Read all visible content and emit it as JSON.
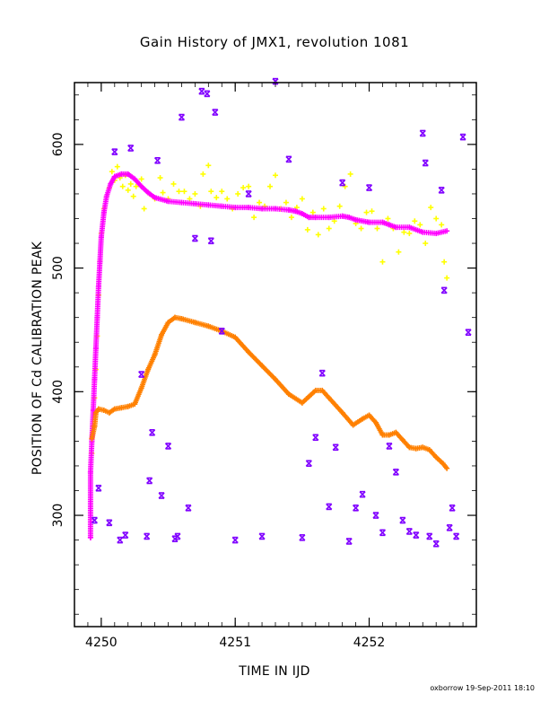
{
  "title": "Gain History of JMX1, revolution 1081",
  "footer": "oxborrow 19-Sep-2011 18:10",
  "colors": {
    "background": "#ffffff",
    "frame": "#000000",
    "yellow": "#ffff00",
    "magenta": "#ff00ff",
    "orange": "#ff8000",
    "purple": "#8000ff"
  },
  "chart_data": {
    "type": "scatter",
    "title": "Gain History of JMX1, revolution 1081",
    "xlabel": "TIME IN IJD",
    "ylabel": "POSITION OF Cd CALIBRATION PEAK",
    "xlim": [
      4249.8,
      4252.8
    ],
    "ylim": [
      210,
      650
    ],
    "xticks": [
      4250,
      4251,
      4252
    ],
    "yticks": [
      300,
      400,
      500,
      600
    ],
    "grid": false,
    "series": [
      {
        "color": "yellow",
        "marker": "cross",
        "points": [
          [
            4249.93,
            350
          ],
          [
            4249.94,
            372
          ],
          [
            4249.95,
            395
          ],
          [
            4249.96,
            418
          ],
          [
            4249.97,
            445
          ],
          [
            4249.98,
            478
          ],
          [
            4249.99,
            505
          ],
          [
            4250.0,
            528
          ],
          [
            4250.02,
            548
          ],
          [
            4250.04,
            558
          ],
          [
            4250.06,
            565
          ],
          [
            4250.08,
            578
          ],
          [
            4250.1,
            571
          ],
          [
            4250.12,
            582
          ],
          [
            4250.14,
            573
          ],
          [
            4250.16,
            566
          ],
          [
            4250.18,
            575
          ],
          [
            4250.2,
            563
          ],
          [
            4250.22,
            568
          ],
          [
            4250.24,
            558
          ],
          [
            4250.26,
            566
          ],
          [
            4250.3,
            572
          ],
          [
            4250.32,
            548
          ],
          [
            4250.36,
            560
          ],
          [
            4250.4,
            556
          ],
          [
            4250.44,
            573
          ],
          [
            4250.46,
            561
          ],
          [
            4250.5,
            556
          ],
          [
            4250.54,
            568
          ],
          [
            4250.58,
            562
          ],
          [
            4250.62,
            562
          ],
          [
            4250.66,
            556
          ],
          [
            4250.7,
            560
          ],
          [
            4250.74,
            550
          ],
          [
            4250.76,
            576
          ],
          [
            4250.8,
            583
          ],
          [
            4250.82,
            562
          ],
          [
            4250.86,
            557
          ],
          [
            4250.9,
            562
          ],
          [
            4250.94,
            556
          ],
          [
            4250.98,
            548
          ],
          [
            4251.02,
            560
          ],
          [
            4251.06,
            565
          ],
          [
            4251.1,
            566
          ],
          [
            4251.14,
            541
          ],
          [
            4251.18,
            553
          ],
          [
            4251.22,
            550
          ],
          [
            4251.26,
            566
          ],
          [
            4251.3,
            575
          ],
          [
            4251.34,
            548
          ],
          [
            4251.38,
            553
          ],
          [
            4251.42,
            541
          ],
          [
            4251.46,
            549
          ],
          [
            4251.5,
            556
          ],
          [
            4251.54,
            531
          ],
          [
            4251.58,
            545
          ],
          [
            4251.62,
            527
          ],
          [
            4251.66,
            548
          ],
          [
            4251.7,
            532
          ],
          [
            4251.74,
            538
          ],
          [
            4251.78,
            550
          ],
          [
            4251.82,
            566
          ],
          [
            4251.86,
            576
          ],
          [
            4251.9,
            536
          ],
          [
            4251.94,
            532
          ],
          [
            4251.98,
            545
          ],
          [
            4252.02,
            546
          ],
          [
            4252.06,
            532
          ],
          [
            4252.1,
            505
          ],
          [
            4252.14,
            540
          ],
          [
            4252.18,
            532
          ],
          [
            4252.22,
            513
          ],
          [
            4252.26,
            529
          ],
          [
            4252.3,
            528
          ],
          [
            4252.34,
            538
          ],
          [
            4252.38,
            535
          ],
          [
            4252.42,
            520
          ],
          [
            4252.46,
            549
          ],
          [
            4252.5,
            540
          ],
          [
            4252.54,
            535
          ],
          [
            4252.56,
            505
          ],
          [
            4252.58,
            492
          ]
        ]
      },
      {
        "color": "magenta",
        "marker": "plus",
        "points": [
          [
            4249.92,
            282
          ],
          [
            4249.92,
            335
          ],
          [
            4249.93,
            360
          ],
          [
            4249.94,
            385
          ],
          [
            4249.95,
            410
          ],
          [
            4249.96,
            435
          ],
          [
            4249.97,
            460
          ],
          [
            4249.98,
            485
          ],
          [
            4249.99,
            505
          ],
          [
            4250.0,
            525
          ],
          [
            4250.02,
            545
          ],
          [
            4250.04,
            558
          ],
          [
            4250.07,
            568
          ],
          [
            4250.1,
            574
          ],
          [
            4250.15,
            576
          ],
          [
            4250.2,
            576
          ],
          [
            4250.25,
            572
          ],
          [
            4250.3,
            566
          ],
          [
            4250.35,
            561
          ],
          [
            4250.4,
            557
          ],
          [
            4250.5,
            554
          ],
          [
            4250.6,
            553
          ],
          [
            4250.7,
            552
          ],
          [
            4250.8,
            551
          ],
          [
            4250.9,
            550
          ],
          [
            4251.0,
            549
          ],
          [
            4251.1,
            549
          ],
          [
            4251.2,
            548
          ],
          [
            4251.3,
            548
          ],
          [
            4251.4,
            547
          ],
          [
            4251.45,
            546
          ],
          [
            4251.5,
            544
          ],
          [
            4251.55,
            541
          ],
          [
            4251.6,
            541
          ],
          [
            4251.7,
            541
          ],
          [
            4251.8,
            542
          ],
          [
            4251.85,
            541
          ],
          [
            4251.9,
            539
          ],
          [
            4252.0,
            537
          ],
          [
            4252.1,
            537
          ],
          [
            4252.15,
            535
          ],
          [
            4252.2,
            533
          ],
          [
            4252.3,
            533
          ],
          [
            4252.4,
            529
          ],
          [
            4252.5,
            528
          ],
          [
            4252.58,
            530
          ]
        ]
      },
      {
        "color": "orange",
        "marker": "plus",
        "points": [
          [
            4249.93,
            362
          ],
          [
            4249.95,
            372
          ],
          [
            4249.96,
            383
          ],
          [
            4249.98,
            386
          ],
          [
            4250.02,
            385
          ],
          [
            4250.06,
            383
          ],
          [
            4250.1,
            386
          ],
          [
            4250.15,
            387
          ],
          [
            4250.2,
            388
          ],
          [
            4250.25,
            390
          ],
          [
            4250.3,
            403
          ],
          [
            4250.35,
            418
          ],
          [
            4250.4,
            430
          ],
          [
            4250.45,
            446
          ],
          [
            4250.5,
            456
          ],
          [
            4250.55,
            460
          ],
          [
            4250.6,
            459
          ],
          [
            4250.7,
            456
          ],
          [
            4250.8,
            453
          ],
          [
            4250.9,
            449
          ],
          [
            4251.0,
            444
          ],
          [
            4251.1,
            432
          ],
          [
            4251.2,
            421
          ],
          [
            4251.3,
            410
          ],
          [
            4251.4,
            398
          ],
          [
            4251.5,
            391
          ],
          [
            4251.55,
            396
          ],
          [
            4251.6,
            401
          ],
          [
            4251.65,
            401
          ],
          [
            4251.7,
            395
          ],
          [
            4251.8,
            383
          ],
          [
            4251.88,
            373
          ],
          [
            4251.95,
            378
          ],
          [
            4252.0,
            381
          ],
          [
            4252.05,
            375
          ],
          [
            4252.1,
            365
          ],
          [
            4252.15,
            365
          ],
          [
            4252.2,
            367
          ],
          [
            4252.25,
            361
          ],
          [
            4252.3,
            355
          ],
          [
            4252.35,
            354
          ],
          [
            4252.4,
            355
          ],
          [
            4252.45,
            353
          ],
          [
            4252.5,
            347
          ],
          [
            4252.55,
            342
          ],
          [
            4252.58,
            338
          ]
        ]
      },
      {
        "color": "purple",
        "marker": "x",
        "points": [
          [
            4249.95,
            296
          ],
          [
            4249.98,
            322
          ],
          [
            4250.06,
            294
          ],
          [
            4250.1,
            594
          ],
          [
            4250.14,
            280
          ],
          [
            4250.18,
            284
          ],
          [
            4250.22,
            597
          ],
          [
            4250.3,
            414
          ],
          [
            4250.34,
            283
          ],
          [
            4250.36,
            328
          ],
          [
            4250.38,
            367
          ],
          [
            4250.42,
            587
          ],
          [
            4250.45,
            316
          ],
          [
            4250.5,
            356
          ],
          [
            4250.55,
            281
          ],
          [
            4250.57,
            283
          ],
          [
            4250.6,
            622
          ],
          [
            4250.65,
            306
          ],
          [
            4250.7,
            524
          ],
          [
            4250.75,
            643
          ],
          [
            4250.79,
            641
          ],
          [
            4250.82,
            522
          ],
          [
            4250.85,
            626
          ],
          [
            4250.9,
            449
          ],
          [
            4251.0,
            280
          ],
          [
            4251.1,
            560
          ],
          [
            4251.2,
            283
          ],
          [
            4251.3,
            651
          ],
          [
            4251.4,
            588
          ],
          [
            4251.5,
            282
          ],
          [
            4251.55,
            342
          ],
          [
            4251.6,
            363
          ],
          [
            4251.65,
            415
          ],
          [
            4251.7,
            307
          ],
          [
            4251.75,
            355
          ],
          [
            4251.8,
            569
          ],
          [
            4251.85,
            279
          ],
          [
            4251.9,
            306
          ],
          [
            4251.95,
            317
          ],
          [
            4252.0,
            565
          ],
          [
            4252.05,
            300
          ],
          [
            4252.1,
            286
          ],
          [
            4252.15,
            356
          ],
          [
            4252.2,
            335
          ],
          [
            4252.25,
            296
          ],
          [
            4252.3,
            287
          ],
          [
            4252.35,
            284
          ],
          [
            4252.4,
            609
          ],
          [
            4252.42,
            585
          ],
          [
            4252.45,
            283
          ],
          [
            4252.5,
            277
          ],
          [
            4252.54,
            563
          ],
          [
            4252.56,
            482
          ],
          [
            4252.6,
            290
          ],
          [
            4252.62,
            306
          ],
          [
            4252.65,
            283
          ],
          [
            4252.7,
            606
          ],
          [
            4252.74,
            448
          ]
        ]
      }
    ]
  }
}
